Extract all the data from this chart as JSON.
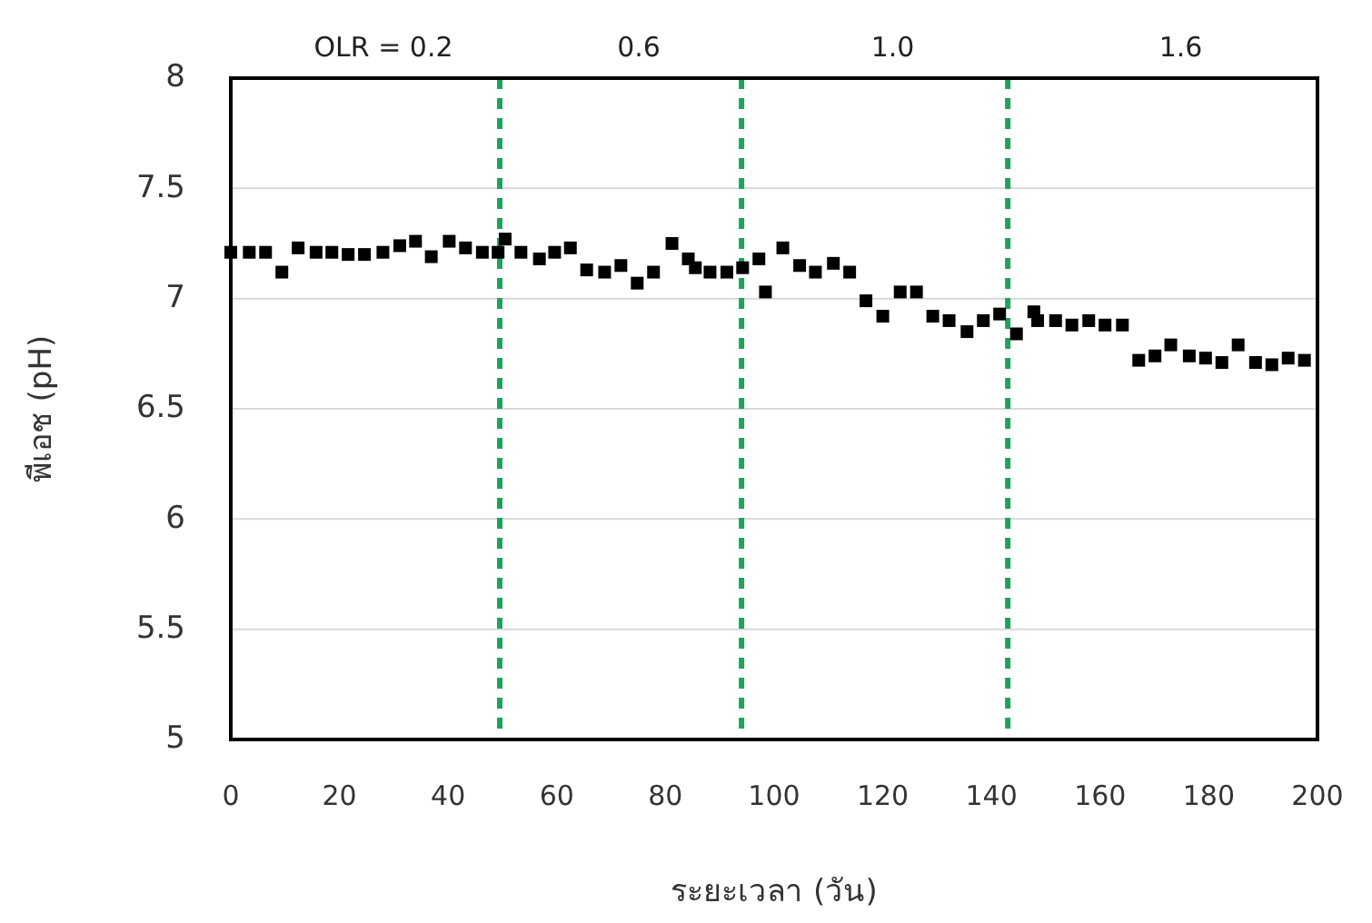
{
  "chart_data": {
    "type": "scatter",
    "xlabel": "ระยะเวลา (วัน)",
    "ylabel": "พีเอช (pH)",
    "x": [
      0,
      3.4,
      6.4,
      9.4,
      12.4,
      15.7,
      18.6,
      21.6,
      24.6,
      28,
      31.1,
      34,
      36.9,
      40.2,
      43.2,
      46.3,
      49.2,
      50.5,
      53.4,
      56.8,
      59.6,
      62.5,
      65.5,
      68.8,
      71.8,
      74.8,
      77.8,
      81.2,
      84.2,
      85.5,
      88.2,
      91.3,
      94.2,
      97.2,
      98.4,
      101.6,
      104.7,
      107.6,
      110.9,
      113.9,
      116.9,
      120,
      123.2,
      126.2,
      129.2,
      132.2,
      135.5,
      138.5,
      141.5,
      144.6,
      147.8,
      148.5,
      151.8,
      154.8,
      157.9,
      160.9,
      164.1,
      167.1,
      170.1,
      173,
      176.4,
      179.4,
      182.4,
      185.4,
      188.6,
      191.6,
      194.6,
      197.6
    ],
    "values": [
      7.21,
      7.21,
      7.21,
      7.12,
      7.23,
      7.21,
      7.21,
      7.2,
      7.2,
      7.21,
      7.24,
      7.26,
      7.19,
      7.26,
      7.23,
      7.21,
      7.21,
      7.27,
      7.21,
      7.18,
      7.21,
      7.23,
      7.13,
      7.12,
      7.15,
      7.07,
      7.12,
      7.25,
      7.18,
      7.14,
      7.12,
      7.12,
      7.14,
      7.18,
      7.03,
      7.23,
      7.15,
      7.12,
      7.16,
      7.12,
      6.99,
      6.92,
      7.03,
      7.03,
      6.92,
      6.9,
      6.85,
      6.9,
      6.93,
      6.84,
      6.94,
      6.9,
      6.9,
      6.88,
      6.9,
      6.88,
      6.88,
      6.72,
      6.74,
      6.79,
      6.74,
      6.73,
      6.71,
      6.79,
      6.71,
      6.7,
      6.73,
      6.72
    ],
    "color": "#000000",
    "marker": "square",
    "xlim": [
      0,
      200
    ],
    "xticks": [
      0,
      20,
      40,
      60,
      80,
      100,
      120,
      140,
      160,
      180,
      200
    ],
    "ylim": [
      5,
      8
    ],
    "yticks": [
      {
        "value": 5,
        "label": "5"
      },
      {
        "value": 5.5,
        "label": "5.5"
      },
      {
        "value": 6,
        "label": "6"
      },
      {
        "value": 6.5,
        "label": "6.5"
      },
      {
        "value": 7,
        "label": "7"
      },
      {
        "value": 7.5,
        "label": "7.5"
      },
      {
        "value": 8,
        "label": "8"
      }
    ],
    "grid": "y",
    "ref_lines": [
      {
        "axis": "x",
        "value": 49.5,
        "color": "#1fa35a",
        "line_style": "dashed"
      },
      {
        "axis": "x",
        "value": 94,
        "color": "#1fa35a",
        "line_style": "dashed"
      },
      {
        "axis": "x",
        "value": 143,
        "color": "#1fa35a",
        "line_style": "dashed"
      }
    ],
    "annotations": [
      "OLR = 0.2",
      "0.6",
      "1.0",
      "1.6"
    ]
  }
}
